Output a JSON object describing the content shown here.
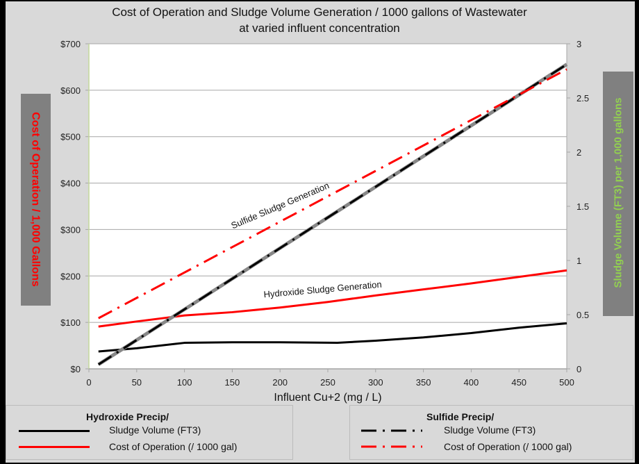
{
  "chart_data": {
    "type": "line",
    "title": "Cost of Operation and Sludge Volume Generation / 1000 gallons of Wastewater",
    "subtitle": "at varied influent concentration",
    "xlabel": "Influent Cu+2 (mg / L)",
    "ylabel_left": "Cost of Operation / 1,000 Gallons",
    "ylabel_right": "Sludge Volume (FT3) per 1,000 gallons",
    "xlim": [
      0,
      500
    ],
    "ylim_left": [
      0,
      700
    ],
    "ylim_right": [
      0,
      3
    ],
    "x_ticks": [
      "0",
      "50",
      "100",
      "150",
      "200",
      "250",
      "300",
      "350",
      "400",
      "450",
      "500"
    ],
    "y_left_ticks": [
      "$0",
      "$100",
      "$200",
      "$300",
      "$400",
      "$500",
      "$600",
      "$700"
    ],
    "y_right_ticks": [
      "0",
      "0.5",
      "1",
      "1.5",
      "2",
      "2.5",
      "3"
    ],
    "grid": "horizontal",
    "series": [
      {
        "name": "Hydroxide Precip/ Sludge Volume (FT3)",
        "axis": "right",
        "style": "solid",
        "color": "#000000",
        "x": [
          10,
          50,
          100,
          150,
          200,
          260,
          300,
          350,
          400,
          450,
          500
        ],
        "y": [
          0.16,
          0.19,
          0.24,
          0.245,
          0.245,
          0.24,
          0.26,
          0.29,
          0.33,
          0.38,
          0.42
        ]
      },
      {
        "name": "Hydroxide Precip/ Cost of Operation (/ 1000 gal)",
        "axis": "left",
        "style": "solid",
        "color": "#ff0000",
        "x": [
          10,
          50,
          100,
          150,
          200,
          250,
          300,
          350,
          400,
          450,
          500
        ],
        "y": [
          91,
          102,
          115,
          122,
          132,
          144,
          158,
          171,
          184,
          198,
          212
        ]
      },
      {
        "name": "Sulfide Precip/ Sludge Volume (FT3)",
        "axis": "right",
        "style": "dash-dot",
        "color": "#000000",
        "x": [
          10,
          500
        ],
        "y": [
          0.04,
          2.81
        ]
      },
      {
        "name": "Sulfide Precip/ Cost of Operation (/ 1000 gal)",
        "axis": "left",
        "style": "dash-dot",
        "color": "#ff0000",
        "x": [
          10,
          500
        ],
        "y": [
          109,
          645
        ]
      }
    ],
    "annotations": [
      "Sulfide Sludge Generation",
      "Hydroxide Sludge Generation"
    ],
    "legend": {
      "placement": "bottom",
      "groups": [
        {
          "header": "Hydroxide Precip/",
          "items": [
            "Sludge Volume (FT3)",
            "Cost of Operation (/ 1000 gal)"
          ]
        },
        {
          "header": "Sulfide Precip/",
          "items": [
            "Sludge Volume (FT3)",
            "Cost of Operation (/ 1000 gal)"
          ]
        }
      ]
    },
    "colors": {
      "left_label": "#ff0000",
      "right_label": "#92d050",
      "label_box": "#808080",
      "background": "#d9d9d9"
    }
  }
}
